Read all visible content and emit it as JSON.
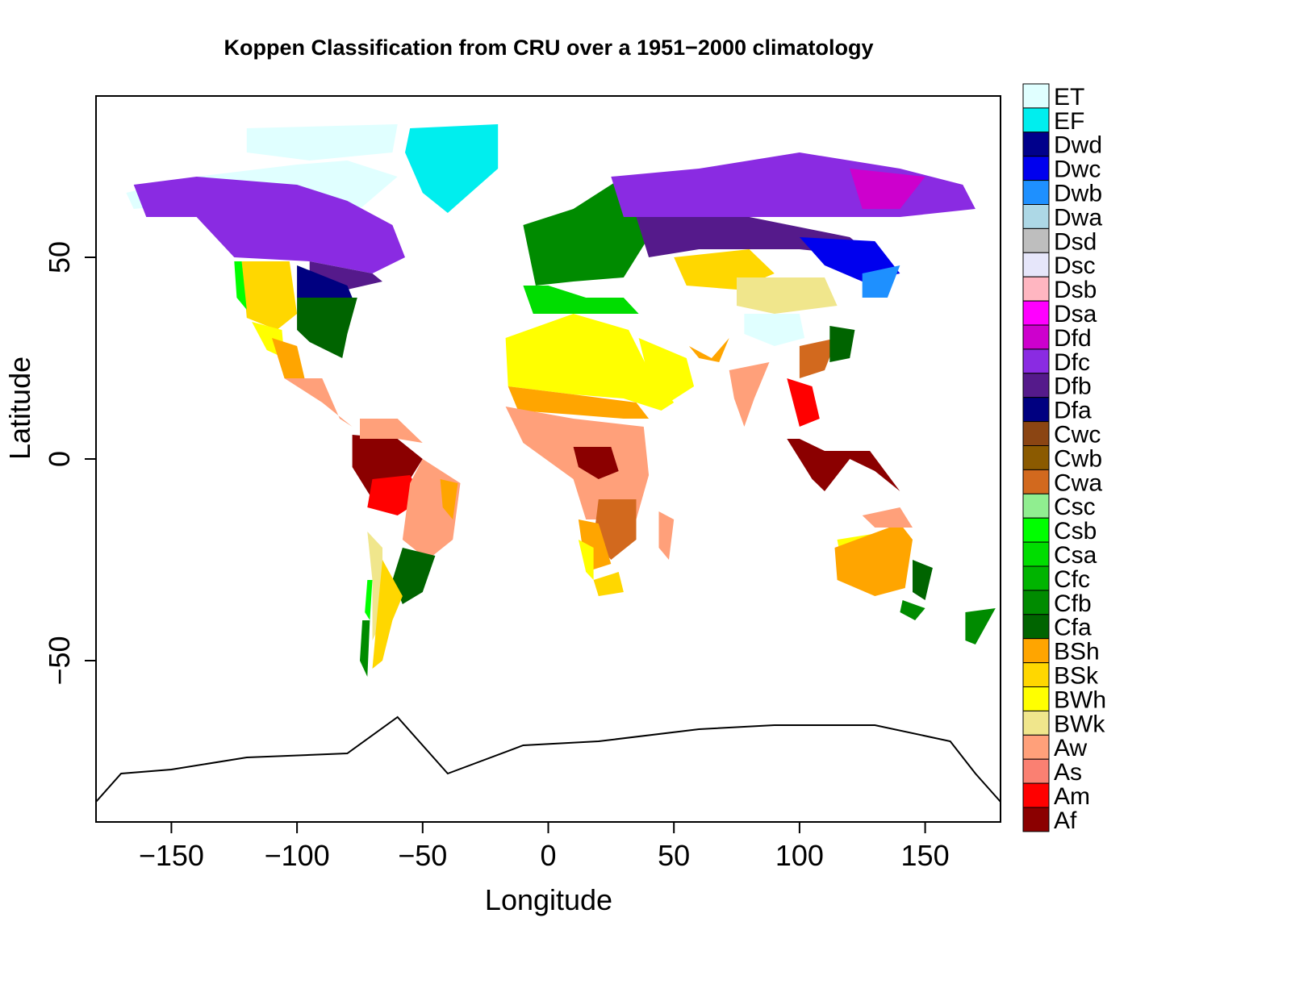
{
  "chart_data": {
    "type": "heatmap",
    "title": "Koppen Classification from CRU over a 1951−2000 climatology",
    "xlabel": "Longitude",
    "ylabel": "Latitude",
    "xlim": [
      -180,
      180
    ],
    "ylim": [
      -90,
      90
    ],
    "xticks": [
      -150,
      -100,
      -50,
      0,
      50,
      100,
      150
    ],
    "xtick_labels": [
      "−150",
      "−100",
      "−50",
      "0",
      "50",
      "100",
      "150"
    ],
    "yticks": [
      -50,
      0,
      50
    ],
    "ytick_labels": [
      "−50",
      "0",
      "50"
    ],
    "legend_position": "right",
    "legend": [
      {
        "label": "ET",
        "color": "#E0FFFF"
      },
      {
        "label": "EF",
        "color": "#00EEEE"
      },
      {
        "label": "Dwd",
        "color": "#00008B"
      },
      {
        "label": "Dwc",
        "color": "#0000EE"
      },
      {
        "label": "Dwb",
        "color": "#1E90FF"
      },
      {
        "label": "Dwa",
        "color": "#ADD8E6"
      },
      {
        "label": "Dsd",
        "color": "#BEBEBE"
      },
      {
        "label": "Dsc",
        "color": "#E6E6FA"
      },
      {
        "label": "Dsb",
        "color": "#FFB6C1"
      },
      {
        "label": "Dsa",
        "color": "#FF00FF"
      },
      {
        "label": "Dfd",
        "color": "#CD00CD"
      },
      {
        "label": "Dfc",
        "color": "#8A2BE2"
      },
      {
        "label": "Dfb",
        "color": "#551A8B"
      },
      {
        "label": "Dfa",
        "color": "#000080"
      },
      {
        "label": "Cwc",
        "color": "#8B4513"
      },
      {
        "label": "Cwb",
        "color": "#8B5A00"
      },
      {
        "label": "Cwa",
        "color": "#D2691E"
      },
      {
        "label": "Csc",
        "color": "#90EE90"
      },
      {
        "label": "Csb",
        "color": "#00FF00"
      },
      {
        "label": "Csa",
        "color": "#00DD00"
      },
      {
        "label": "Cfc",
        "color": "#00B400"
      },
      {
        "label": "Cfb",
        "color": "#008B00"
      },
      {
        "label": "Cfa",
        "color": "#006400"
      },
      {
        "label": "BSh",
        "color": "#FFA500"
      },
      {
        "label": "BSk",
        "color": "#FFD700"
      },
      {
        "label": "BWh",
        "color": "#FFFF00"
      },
      {
        "label": "BWk",
        "color": "#F0E68C"
      },
      {
        "label": "Aw",
        "color": "#FFA07A"
      },
      {
        "label": "As",
        "color": "#FA8072"
      },
      {
        "label": "Am",
        "color": "#FF0000"
      },
      {
        "label": "Af",
        "color": "#8B0000"
      }
    ]
  }
}
